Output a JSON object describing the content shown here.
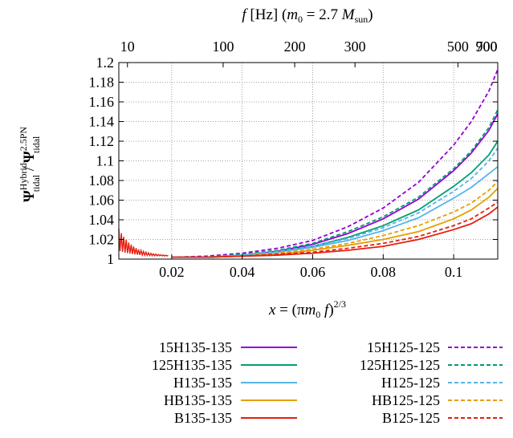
{
  "chart_data": {
    "type": "line",
    "title": "",
    "xlabel": "x = (πm0 f)^2/3",
    "ylabel": "Ψ tidal Hybrid / Ψ tidal 2.5PN",
    "top_axis_label": "f [Hz] (m0 = 2.7 Msun)",
    "xlim": [
      0.005,
      0.1125
    ],
    "ylim": [
      1.0,
      1.2
    ],
    "grid": true,
    "legend_position": "below",
    "x_ticks": [
      0.02,
      0.04,
      0.06,
      0.08,
      0.1
    ],
    "x_tick_labels": [
      "0.02",
      "0.04",
      "0.06",
      "0.08",
      "0.1"
    ],
    "y_ticks": [
      1.0,
      1.02,
      1.04,
      1.06,
      1.08,
      1.1,
      1.12,
      1.14,
      1.16,
      1.18,
      1.2
    ],
    "y_tick_labels": [
      "1",
      "1.02",
      "1.04",
      "1.06",
      "1.08",
      "1.1",
      "1.12",
      "1.14",
      "1.16",
      "1.18",
      "1.2"
    ],
    "top_ticks": [
      {
        "label": "10",
        "x": 0.00745
      },
      {
        "label": "100",
        "x": 0.0346
      },
      {
        "label": "200",
        "x": 0.0549
      },
      {
        "label": "300",
        "x": 0.072
      },
      {
        "label": "500",
        "x": 0.1012
      },
      {
        "label": "700",
        "x": 0.1267
      },
      {
        "label": "900",
        "x": 0.1496
      }
    ],
    "series": [
      {
        "name": "15H135-135",
        "color": "#9400d3",
        "dash": "solid",
        "x": [
          0.02,
          0.03,
          0.04,
          0.05,
          0.06,
          0.07,
          0.08,
          0.09,
          0.1,
          0.105,
          0.11,
          0.1125
        ],
        "y": [
          1.002,
          1.002,
          1.004,
          1.008,
          1.015,
          1.026,
          1.041,
          1.061,
          1.09,
          1.108,
          1.131,
          1.148
        ]
      },
      {
        "name": "125H135-135",
        "color": "#009e73",
        "dash": "solid",
        "x": [
          0.02,
          0.03,
          0.04,
          0.05,
          0.06,
          0.07,
          0.08,
          0.09,
          0.1,
          0.105,
          0.11,
          0.1125
        ],
        "y": [
          1.002,
          1.002,
          1.004,
          1.007,
          1.013,
          1.022,
          1.034,
          1.05,
          1.074,
          1.088,
          1.106,
          1.12
        ]
      },
      {
        "name": "H135-135",
        "color": "#56b4e9",
        "dash": "solid",
        "x": [
          0.02,
          0.03,
          0.04,
          0.05,
          0.06,
          0.07,
          0.08,
          0.09,
          0.1,
          0.105,
          0.11,
          0.1125
        ],
        "y": [
          1.002,
          1.002,
          1.004,
          1.007,
          1.012,
          1.019,
          1.029,
          1.042,
          1.062,
          1.073,
          1.087,
          1.094
        ]
      },
      {
        "name": "HB135-135",
        "color": "#e69f00",
        "dash": "solid",
        "x": [
          0.02,
          0.03,
          0.04,
          0.05,
          0.06,
          0.07,
          0.08,
          0.09,
          0.1,
          0.105,
          0.11,
          0.1125
        ],
        "y": [
          1.002,
          1.002,
          1.003,
          1.005,
          1.009,
          1.014,
          1.02,
          1.028,
          1.041,
          1.05,
          1.063,
          1.072
        ]
      },
      {
        "name": "B135-135",
        "color": "#e51e10",
        "dash": "solid",
        "x": [
          0.02,
          0.03,
          0.04,
          0.05,
          0.06,
          0.07,
          0.08,
          0.09,
          0.1,
          0.105,
          0.11,
          0.1125
        ],
        "y": [
          1.002,
          1.002,
          1.003,
          1.004,
          1.006,
          1.009,
          1.013,
          1.02,
          1.03,
          1.036,
          1.046,
          1.053
        ]
      },
      {
        "name": "15H125-125",
        "color": "#9400d3",
        "dash": "dashed",
        "x": [
          0.02,
          0.03,
          0.04,
          0.05,
          0.06,
          0.07,
          0.08,
          0.09,
          0.1,
          0.105,
          0.11,
          0.1125
        ],
        "y": [
          1.002,
          1.003,
          1.006,
          1.011,
          1.019,
          1.033,
          1.052,
          1.078,
          1.116,
          1.14,
          1.171,
          1.193
        ]
      },
      {
        "name": "125H125-125",
        "color": "#009e73",
        "dash": "dashed",
        "x": [
          0.02,
          0.03,
          0.04,
          0.05,
          0.06,
          0.07,
          0.08,
          0.09,
          0.1,
          0.105,
          0.11,
          0.1125
        ],
        "y": [
          1.002,
          1.002,
          1.005,
          1.009,
          1.016,
          1.028,
          1.043,
          1.063,
          1.092,
          1.11,
          1.134,
          1.152
        ]
      },
      {
        "name": "H125-125",
        "color": "#56b4e9",
        "dash": "dashed",
        "x": [
          0.02,
          0.03,
          0.04,
          0.05,
          0.06,
          0.07,
          0.08,
          0.09,
          0.1,
          0.105,
          0.11,
          0.1125
        ],
        "y": [
          1.002,
          1.002,
          1.004,
          1.008,
          1.013,
          1.021,
          1.032,
          1.047,
          1.069,
          1.082,
          1.1,
          1.113
        ]
      },
      {
        "name": "HB125-125",
        "color": "#e69f00",
        "dash": "dashed",
        "x": [
          0.02,
          0.03,
          0.04,
          0.05,
          0.06,
          0.07,
          0.08,
          0.09,
          0.1,
          0.105,
          0.11,
          0.1125
        ],
        "y": [
          1.002,
          1.002,
          1.003,
          1.006,
          1.01,
          1.016,
          1.024,
          1.034,
          1.048,
          1.057,
          1.07,
          1.079
        ]
      },
      {
        "name": "B125-125",
        "color": "#e51e10",
        "dash": "dashed",
        "x": [
          0.02,
          0.03,
          0.04,
          0.05,
          0.06,
          0.07,
          0.08,
          0.09,
          0.1,
          0.105,
          0.11,
          0.1125
        ],
        "y": [
          1.002,
          1.002,
          1.003,
          1.005,
          1.007,
          1.011,
          1.016,
          1.023,
          1.034,
          1.041,
          1.052,
          1.058
        ]
      }
    ]
  }
}
